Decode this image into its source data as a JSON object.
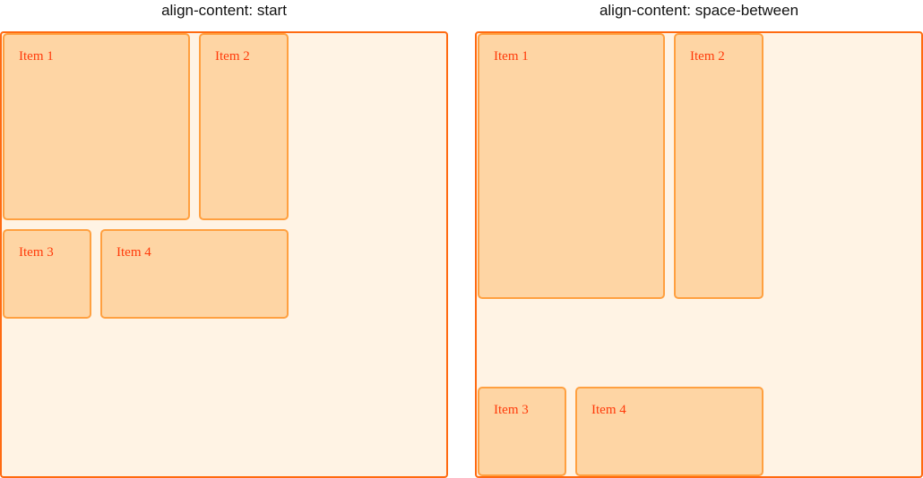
{
  "panels": [
    {
      "title": "align-content: start",
      "items": [
        "Item 1",
        "Item 2",
        "Item 3",
        "Item 4"
      ]
    },
    {
      "title": "align-content: space-between",
      "items": [
        "Item 1",
        "Item 2",
        "Item 3",
        "Item 4"
      ]
    }
  ],
  "colors": {
    "container_border": "#ff6a10",
    "container_bg": "#fff3e4",
    "item_border": "#ffa040",
    "item_bg": "#fed5a4",
    "item_text": "#ff3a0a"
  }
}
